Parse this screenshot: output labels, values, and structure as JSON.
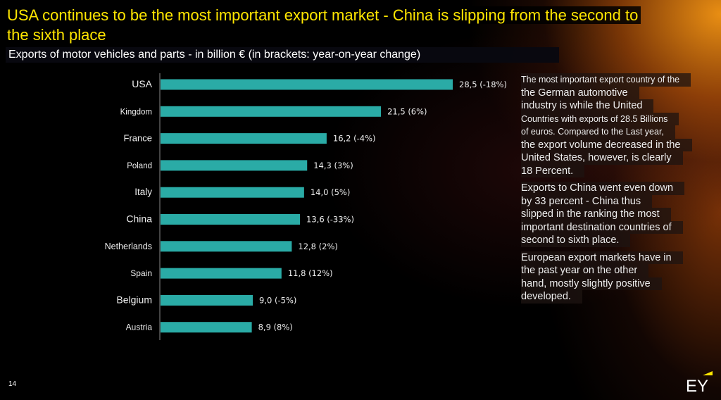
{
  "slide": {
    "title_line1": "USA continues to be the most important export market - China is slipping from the second to",
    "title_line2": "the sixth place",
    "subtitle": "Exports of motor vehicles and parts - in billion € (in brackets: year-on-year change)",
    "page_number": "14",
    "logo_text": "EY",
    "colors": {
      "title": "#ffe600",
      "bar": "#2aaba6",
      "background": "#000000",
      "glow": "#f59614"
    }
  },
  "notes": {
    "paragraphs": [
      [
        "The most important export country of the",
        "the German automotive",
        "industry is while the United",
        "Countries with exports of 28.5 Billions",
        "of euros. Compared to the Last year,",
        "the export volume decreased in the",
        "United States, however, is clearly",
        "18 Percent."
      ],
      [
        "Exports to China went even down",
        "by 33 percent - China thus",
        "slipped in the ranking the most",
        "important destination countries of",
        "second to sixth place."
      ],
      [
        "European export markets have in",
        "the past year on the other",
        "hand, mostly slightly positive",
        "developed."
      ]
    ]
  },
  "chart_data": {
    "type": "bar",
    "orientation": "horizontal",
    "categories": [
      "USA",
      "Kingdom",
      "France",
      "Poland",
      "Italy",
      "China",
      "Netherlands",
      "Spain",
      "Belgium",
      "Austria"
    ],
    "values": [
      28.5,
      21.5,
      16.2,
      14.3,
      14.0,
      13.6,
      12.8,
      11.8,
      9.0,
      8.9
    ],
    "yoy_change_percent": [
      -18,
      6,
      -4,
      3,
      5,
      -33,
      2,
      12,
      -5,
      8
    ],
    "data_labels": [
      "28,5 (-18%)",
      "21,5 (6%)",
      "16,2 (-4%)",
      "14,3 (3%)",
      "14,0 (5%)",
      "13,6 (-33%)",
      "12,8 (2%)",
      "11,8 (12%)",
      "9,0 (-5%)",
      "8,9 (8%)"
    ],
    "xlim": [
      0,
      28.5
    ],
    "grid": false,
    "legend": "none",
    "color": "#2aaba6"
  }
}
